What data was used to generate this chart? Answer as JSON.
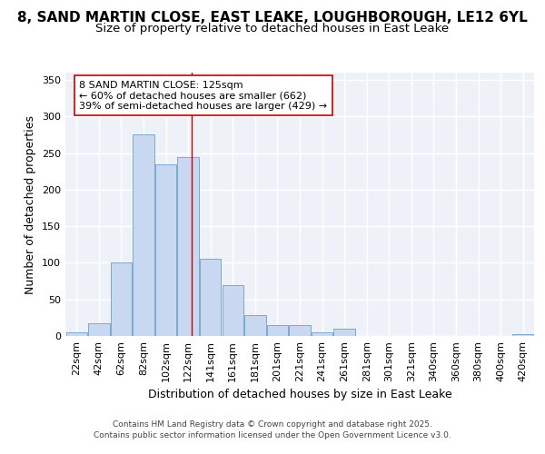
{
  "title_line1": "8, SAND MARTIN CLOSE, EAST LEAKE, LOUGHBOROUGH, LE12 6YL",
  "title_line2": "Size of property relative to detached houses in East Leake",
  "xlabel": "Distribution of detached houses by size in East Leake",
  "ylabel": "Number of detached properties",
  "bar_labels": [
    "22sqm",
    "42sqm",
    "62sqm",
    "82sqm",
    "102sqm",
    "122sqm",
    "141sqm",
    "161sqm",
    "181sqm",
    "201sqm",
    "221sqm",
    "241sqm",
    "261sqm",
    "281sqm",
    "301sqm",
    "321sqm",
    "340sqm",
    "360sqm",
    "380sqm",
    "400sqm",
    "420sqm"
  ],
  "bar_values": [
    5,
    18,
    100,
    275,
    235,
    245,
    105,
    70,
    28,
    15,
    15,
    5,
    10,
    0,
    0,
    0,
    0,
    0,
    0,
    0,
    2
  ],
  "bar_color": "#c8d8f0",
  "bar_edge_color": "#7aaacc",
  "vline_color": "#cc0000",
  "vline_x_index": 5,
  "annotation_text": "8 SAND MARTIN CLOSE: 125sqm\n← 60% of detached houses are smaller (662)\n39% of semi-detached houses are larger (429) →",
  "annotation_box_color": "white",
  "annotation_box_edge": "#cc0000",
  "bg_color": "#ffffff",
  "plot_bg_color": "#eef2f8",
  "grid_color": "#ffffff",
  "ylim": [
    0,
    360
  ],
  "yticks": [
    0,
    50,
    100,
    150,
    200,
    250,
    300,
    350
  ],
  "footer_line1": "Contains HM Land Registry data © Crown copyright and database right 2025.",
  "footer_line2": "Contains public sector information licensed under the Open Government Licence v3.0.",
  "title_fontsize": 11,
  "subtitle_fontsize": 9.5,
  "axis_label_fontsize": 9,
  "tick_fontsize": 8,
  "annotation_fontsize": 8,
  "footer_fontsize": 6.5
}
